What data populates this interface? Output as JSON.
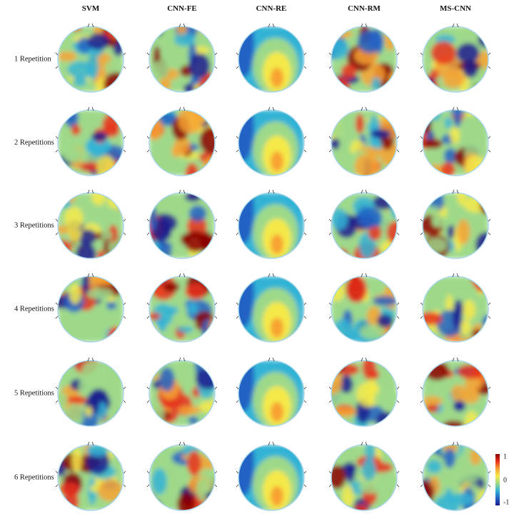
{
  "columns": [
    "SVM",
    "CNN-FE",
    "CNN-RE",
    "CNN-RM",
    "MS-CNN"
  ],
  "rows": [
    "1 Repetition",
    "2 Repetitions",
    "3 Repetitions",
    "4 Repetitions",
    "5 Repetitions",
    "6 Repetitions"
  ],
  "colorbar": {
    "max_label": "1",
    "mid_label": "0",
    "min_label": "-1",
    "colormap": [
      "#1c1c8e",
      "#2262c4",
      "#33b3d6",
      "#9ed98a",
      "#f5e94a",
      "#f7a233",
      "#e8311c",
      "#8b0000"
    ]
  }
}
